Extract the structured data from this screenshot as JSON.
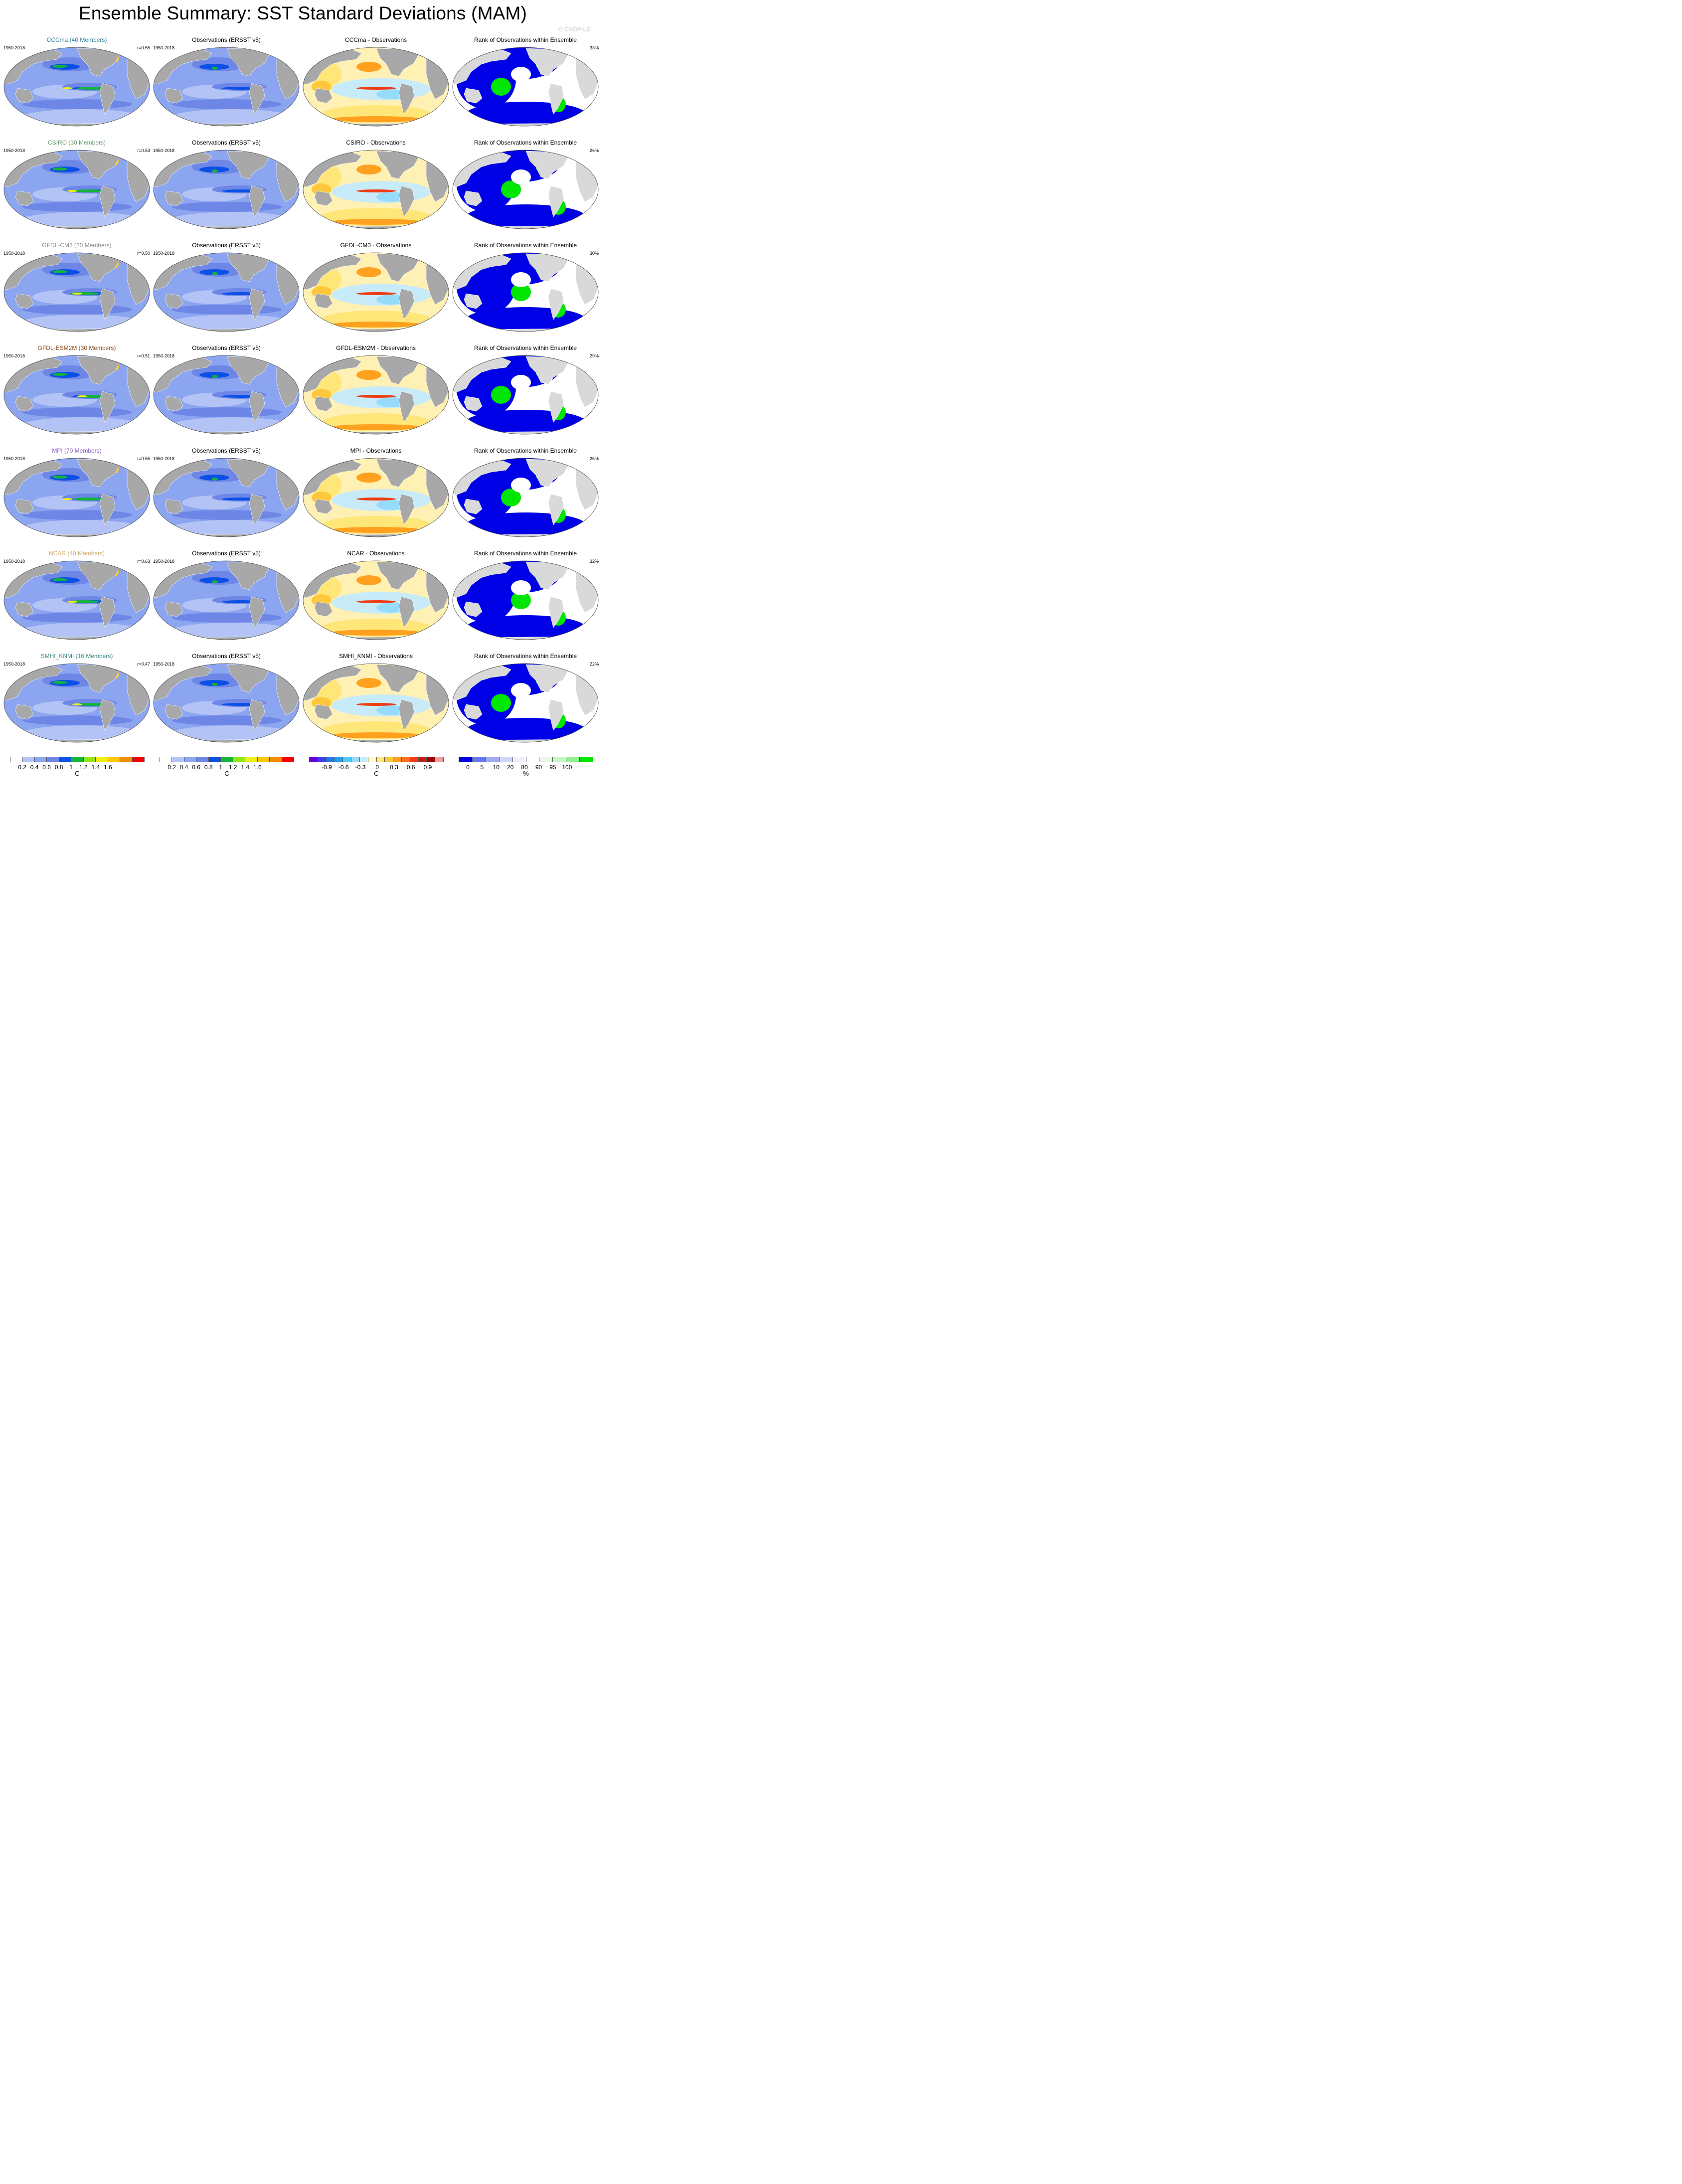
{
  "title": "Ensemble Summary: SST Standard Deviations (MAM)",
  "watermark": "© CVDP-LE",
  "period": "1950-2018",
  "obs_title": "Observations (ERSST v5)",
  "rank_title": "Rank of Observations within Ensemble",
  "rows": [
    {
      "model": "CCCma (40 Members)",
      "model_color": "#2b7a9c",
      "r": "r=0.55",
      "diff_title": "CCCma - Observations",
      "rank_pct": "33%"
    },
    {
      "model": "CSIRO (30 Members)",
      "model_color": "#6b9a6b",
      "r": "r=0.53",
      "diff_title": "CSIRO - Observations",
      "rank_pct": "26%"
    },
    {
      "model": "GFDL-CM3 (20 Members)",
      "model_color": "#8a8a8a",
      "r": "r=0.50",
      "diff_title": "GFDL-CM3 - Observations",
      "rank_pct": "30%"
    },
    {
      "model": "GFDL-ESM2M (30 Members)",
      "model_color": "#8a4a1e",
      "r": "r=0.51",
      "diff_title": "GFDL-ESM2M - Observations",
      "rank_pct": "29%"
    },
    {
      "model": "MPI (70 Members)",
      "model_color": "#8a5ac8",
      "r": "r=0.55",
      "diff_title": "MPI - Observations",
      "rank_pct": "25%"
    },
    {
      "model": "NCAR (40 Members)",
      "model_color": "#d2aa70",
      "r": "r=0.63",
      "diff_title": "NCAR - Observations",
      "rank_pct": "32%"
    },
    {
      "model": "SMHI_KNMI (16 Members)",
      "model_color": "#3f8a86",
      "r": "r=0.47",
      "diff_title": "SMHI_KNMI - Observations",
      "rank_pct": "22%"
    }
  ],
  "colorbars": {
    "sst": {
      "colors": [
        "#ffffff",
        "#b4c3f5",
        "#8ca5f0",
        "#6e87e6",
        "#0a50e6",
        "#14b43c",
        "#96e614",
        "#f0f014",
        "#ffc800",
        "#f08c00",
        "#f50000"
      ],
      "labels": [
        "0.2",
        "0.4",
        "0.6",
        "0.8",
        "1",
        "1.2",
        "1.4",
        "1.6"
      ],
      "unit": "C"
    },
    "sst_obs": {
      "colors": [
        "#ffffff",
        "#b4c3f5",
        "#8ca5f0",
        "#6e87e6",
        "#0a50e6",
        "#14b43c",
        "#96e614",
        "#f0f014",
        "#ffc800",
        "#f08c00",
        "#f50000"
      ],
      "labels": [
        "0.2",
        "0.4",
        "0.6",
        "0.8",
        "1",
        "1.2",
        "1.4",
        "1.6"
      ],
      "unit": "C"
    },
    "diff": {
      "colors": [
        "#6400dc",
        "#3c3cf0",
        "#1e78f0",
        "#1ea0f5",
        "#50c8f5",
        "#96dcfa",
        "#c8ebfa",
        "#fffac8",
        "#ffe678",
        "#ffc83c",
        "#ffa01e",
        "#ff6e1e",
        "#f03c14",
        "#c81e14",
        "#a00000",
        "#f0a0a0"
      ],
      "labels": [
        "-0.9",
        "-0.6",
        "-0.3",
        "0",
        "0.3",
        "0.6",
        "0.9"
      ],
      "unit": "C"
    },
    "rank": {
      "colors": [
        "#0000e6",
        "#6478f0",
        "#a0aaf0",
        "#d2d7fa",
        "#f0f0ff",
        "#ffffff",
        "#e6fae6",
        "#c8f5c8",
        "#96f096",
        "#00e600"
      ],
      "labels": [
        "0",
        "5",
        "10",
        "20",
        "80",
        "90",
        "95",
        "100"
      ],
      "unit": "%"
    }
  }
}
